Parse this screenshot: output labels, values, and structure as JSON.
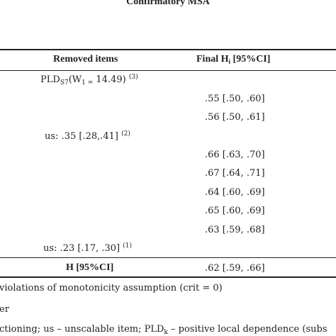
{
  "title": "Confirmatory MSA",
  "header": {
    "removed_items": "Removed items",
    "final_hi_prefix": "Final H",
    "final_hi_sub": "i",
    "final_hi_suffix": " [95%CI]"
  },
  "rows": [
    {
      "removed_main": "PLD",
      "removed_sub": "S7",
      "removed_mid": "(W",
      "removed_sub2": "1 =",
      "removed_tail": " 14.49) ",
      "removed_sup": "(3)",
      "final": ""
    },
    {
      "removed": "",
      "final": ".55 [.50, .60]"
    },
    {
      "removed": "",
      "final": ".56 [.50, .61]"
    },
    {
      "removed": "us: .35 [.28,.41] ",
      "removed_sup": "(2)",
      "final": ""
    },
    {
      "removed": "",
      "final": ".66 [.63, .70]"
    },
    {
      "removed": "",
      "final": ".67 [.64, .71]"
    },
    {
      "removed": "",
      "final": ".64 [.60, .69]"
    },
    {
      "removed": "",
      "final": ".65 [.60, .69]"
    },
    {
      "removed": "",
      "final": ".63 [.59, .68]"
    },
    {
      "removed": "us: .23 [.17, .30] ",
      "removed_sup": "(1)",
      "final": ""
    }
  ],
  "total": {
    "label": "H [95%CI]",
    "value": ".62 [.59, .66]"
  },
  "notes": {
    "line1": "violations of monotonicity assumption (crit = 0)",
    "line2": "er",
    "line3_a": "ctioning; us – unscalable item; PLD",
    "line3_sub": "k",
    "line3_b": " – positive local dependence (subs"
  }
}
